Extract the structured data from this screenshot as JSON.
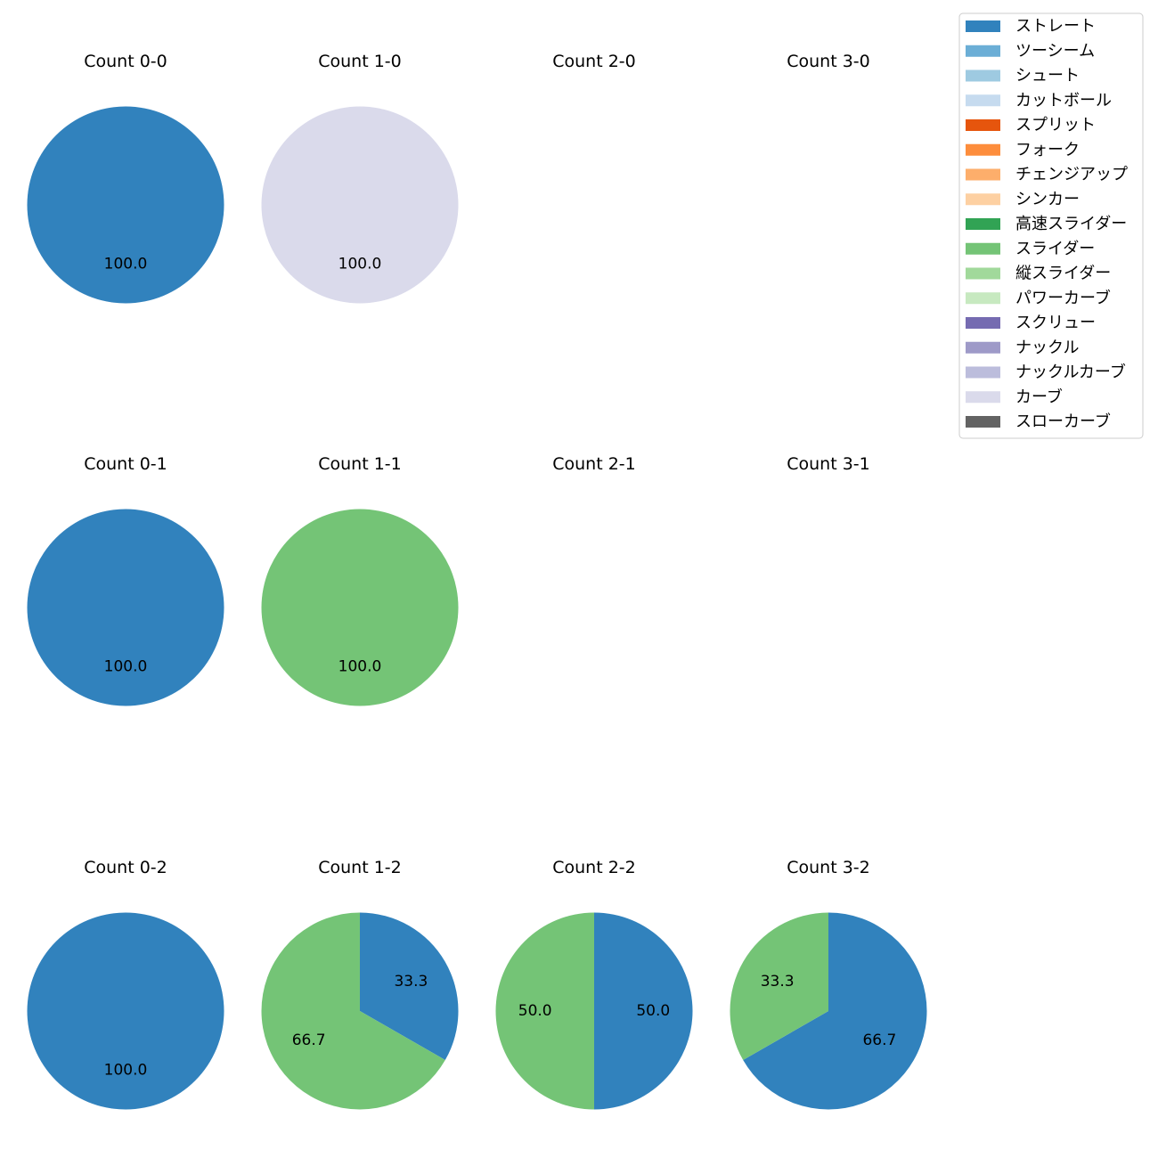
{
  "chart_data": {
    "type": "pie",
    "legend": {
      "placement": "top-right",
      "entries": [
        {
          "name": "ストレート",
          "color": "#3182bd"
        },
        {
          "name": "ツーシーム",
          "color": "#6baed6"
        },
        {
          "name": "シュート",
          "color": "#9ecae1"
        },
        {
          "name": "カットボール",
          "color": "#c6dbef"
        },
        {
          "name": "スプリット",
          "color": "#e6550d"
        },
        {
          "name": "フォーク",
          "color": "#fd8d3c"
        },
        {
          "name": "チェンジアップ",
          "color": "#fdae6b"
        },
        {
          "name": "シンカー",
          "color": "#fdd0a2"
        },
        {
          "name": "高速スライダー",
          "color": "#31a354"
        },
        {
          "name": "スライダー",
          "color": "#74c476"
        },
        {
          "name": "縦スライダー",
          "color": "#a1d99b"
        },
        {
          "name": "パワーカーブ",
          "color": "#c7e9c0"
        },
        {
          "name": "スクリュー",
          "color": "#756bb1"
        },
        {
          "name": "ナックル",
          "color": "#9e9ac8"
        },
        {
          "name": "ナックルカーブ",
          "color": "#bcbddc"
        },
        {
          "name": "カーブ",
          "color": "#dadaeb"
        },
        {
          "name": "スローカーブ",
          "color": "#636363"
        }
      ]
    },
    "panels": [
      {
        "title": "Count 0-0",
        "slices": [
          {
            "pitch": "ストレート",
            "value": 100.0,
            "label": "100.0"
          }
        ]
      },
      {
        "title": "Count 1-0",
        "slices": [
          {
            "pitch": "カーブ",
            "value": 100.0,
            "label": "100.0"
          }
        ]
      },
      {
        "title": "Count 2-0",
        "slices": []
      },
      {
        "title": "Count 3-0",
        "slices": []
      },
      {
        "title": "Count 0-1",
        "slices": [
          {
            "pitch": "ストレート",
            "value": 100.0,
            "label": "100.0"
          }
        ]
      },
      {
        "title": "Count 1-1",
        "slices": [
          {
            "pitch": "スライダー",
            "value": 100.0,
            "label": "100.0"
          }
        ]
      },
      {
        "title": "Count 2-1",
        "slices": []
      },
      {
        "title": "Count 3-1",
        "slices": []
      },
      {
        "title": "Count 0-2",
        "slices": [
          {
            "pitch": "ストレート",
            "value": 100.0,
            "label": "100.0"
          }
        ]
      },
      {
        "title": "Count 1-2",
        "slices": [
          {
            "pitch": "ストレート",
            "value": 33.3,
            "label": "33.3"
          },
          {
            "pitch": "スライダー",
            "value": 66.7,
            "label": "66.7"
          }
        ]
      },
      {
        "title": "Count 2-2",
        "slices": [
          {
            "pitch": "ストレート",
            "value": 50.0,
            "label": "50.0"
          },
          {
            "pitch": "スライダー",
            "value": 50.0,
            "label": "50.0"
          }
        ]
      },
      {
        "title": "Count 3-2",
        "slices": [
          {
            "pitch": "ストレート",
            "value": 66.7,
            "label": "66.7"
          },
          {
            "pitch": "スライダー",
            "value": 33.3,
            "label": "33.3"
          }
        ]
      }
    ]
  }
}
